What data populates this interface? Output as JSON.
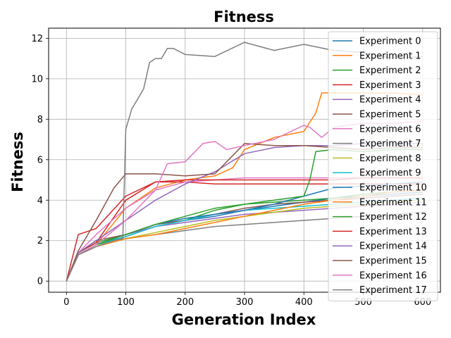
{
  "chart_data": {
    "type": "line",
    "title": "Fitness",
    "xlabel": "Generation Index",
    "ylabel": "Fitness",
    "xlim": [
      -30,
      630
    ],
    "ylim": [
      -0.55,
      12.5
    ],
    "xticks": [
      0,
      100,
      200,
      300,
      400,
      500,
      600
    ],
    "yticks": [
      0,
      2,
      4,
      6,
      8,
      10,
      12
    ],
    "grid": true,
    "legend_position": "top-right",
    "series": [
      {
        "name": "Experiment 0",
        "color": "#1f77b4",
        "x": [
          0,
          20,
          50,
          100,
          150,
          200,
          250,
          300,
          350,
          400,
          450,
          500,
          550,
          600
        ],
        "y": [
          0,
          1.3,
          1.8,
          2.2,
          2.7,
          3.0,
          3.2,
          3.5,
          3.7,
          3.9,
          4.1,
          4.2,
          4.3,
          4.4
        ]
      },
      {
        "name": "Experiment 1",
        "color": "#ff7f0e",
        "x": [
          0,
          20,
          50,
          100,
          150,
          200,
          250,
          280,
          300,
          350,
          400,
          420,
          430,
          450,
          500,
          550,
          600
        ],
        "y": [
          0,
          1.3,
          1.8,
          3.6,
          4.6,
          5.0,
          5.2,
          5.6,
          6.5,
          7.1,
          7.4,
          8.3,
          9.3,
          9.3,
          9.3,
          9.3,
          9.2
        ]
      },
      {
        "name": "Experiment 2",
        "color": "#2ca02c",
        "x": [
          0,
          20,
          50,
          100,
          150,
          200,
          250,
          300,
          350,
          400,
          450,
          500,
          550,
          600
        ],
        "y": [
          0,
          1.4,
          1.9,
          2.3,
          2.8,
          3.0,
          3.5,
          3.8,
          3.9,
          4.0,
          4.1,
          4.3,
          4.4,
          4.5
        ]
      },
      {
        "name": "Experiment 3",
        "color": "#d62728",
        "x": [
          0,
          20,
          50,
          100,
          150,
          200,
          250,
          300,
          350,
          400,
          450,
          500,
          550,
          600
        ],
        "y": [
          0,
          1.4,
          1.9,
          4.0,
          4.9,
          4.9,
          4.8,
          4.8,
          4.8,
          4.8,
          4.8,
          4.8,
          4.8,
          4.8
        ]
      },
      {
        "name": "Experiment 4",
        "color": "#9467bd",
        "x": [
          0,
          20,
          50,
          100,
          150,
          200,
          250,
          300,
          350,
          400,
          450,
          500,
          550,
          600
        ],
        "y": [
          0,
          1.3,
          1.8,
          2.3,
          2.7,
          2.9,
          3.1,
          3.3,
          3.4,
          3.5,
          3.6,
          3.7,
          3.8,
          3.9
        ]
      },
      {
        "name": "Experiment 5",
        "color": "#8c564b",
        "x": [
          0,
          20,
          50,
          100,
          150,
          200,
          250,
          300,
          350,
          400,
          450,
          500,
          550,
          600
        ],
        "y": [
          0,
          1.4,
          2.0,
          2.3,
          2.8,
          3.0,
          3.3,
          3.6,
          3.8,
          3.9,
          4.0,
          4.1,
          4.2,
          4.3
        ]
      },
      {
        "name": "Experiment 6",
        "color": "#e377c2",
        "x": [
          0,
          20,
          50,
          100,
          150,
          200,
          250,
          300,
          350,
          400,
          450,
          500,
          550,
          600
        ],
        "y": [
          0,
          1.4,
          2.3,
          3.6,
          4.5,
          4.9,
          5.0,
          5.1,
          5.1,
          5.1,
          5.1,
          5.1,
          5.1,
          5.1
        ]
      },
      {
        "name": "Experiment 7",
        "color": "#7f7f7f",
        "x": [
          0,
          20,
          50,
          100,
          150,
          200,
          250,
          300,
          350,
          400,
          450,
          500,
          550,
          600
        ],
        "y": [
          0,
          1.3,
          1.8,
          2.1,
          2.3,
          2.5,
          2.7,
          2.8,
          2.9,
          3.0,
          3.1,
          3.2,
          3.3,
          3.4
        ]
      },
      {
        "name": "Experiment 8",
        "color": "#bcbd22",
        "x": [
          0,
          20,
          50,
          100,
          150,
          200,
          250,
          300,
          350,
          400,
          450,
          500,
          550,
          600
        ],
        "y": [
          0,
          1.3,
          1.8,
          2.1,
          2.4,
          2.7,
          3.0,
          3.2,
          3.4,
          3.6,
          3.7,
          3.8,
          3.9,
          4.0
        ]
      },
      {
        "name": "Experiment 9",
        "color": "#17becf",
        "x": [
          0,
          20,
          50,
          100,
          150,
          200,
          250,
          300,
          350,
          400,
          450,
          500,
          550,
          600
        ],
        "y": [
          0,
          1.3,
          1.8,
          2.2,
          2.7,
          3.0,
          3.3,
          3.5,
          3.6,
          3.7,
          3.8,
          3.9,
          4.0,
          4.1
        ]
      },
      {
        "name": "Experiment 10",
        "color": "#1f77b4",
        "x": [
          0,
          20,
          50,
          100,
          150,
          200,
          250,
          300,
          350,
          400,
          450,
          500,
          550,
          600
        ],
        "y": [
          0,
          1.3,
          1.8,
          2.3,
          2.8,
          3.1,
          3.3,
          3.5,
          3.8,
          4.2,
          4.6,
          4.7,
          4.8,
          4.9
        ]
      },
      {
        "name": "Experiment 11",
        "color": "#ff7f0e",
        "x": [
          0,
          20,
          50,
          100,
          150,
          200,
          250,
          300,
          350,
          400,
          450,
          500,
          550,
          600
        ],
        "y": [
          0,
          1.3,
          1.7,
          2.1,
          2.3,
          2.6,
          2.9,
          3.2,
          3.5,
          3.8,
          4.0,
          4.2,
          4.4,
          4.5
        ]
      },
      {
        "name": "Experiment 12",
        "color": "#2ca02c",
        "x": [
          0,
          20,
          50,
          100,
          150,
          200,
          250,
          300,
          350,
          400,
          410,
          420,
          450,
          500,
          550,
          600
        ],
        "y": [
          0,
          1.3,
          1.8,
          2.3,
          2.8,
          3.2,
          3.6,
          3.8,
          4.0,
          4.2,
          5.0,
          6.4,
          6.5,
          6.4,
          6.5,
          6.5
        ]
      },
      {
        "name": "Experiment 13",
        "color": "#d62728",
        "x": [
          0,
          20,
          50,
          100,
          150,
          200,
          250,
          300,
          350,
          400,
          450,
          500,
          550,
          600
        ],
        "y": [
          0,
          2.3,
          2.6,
          4.2,
          4.9,
          5.0,
          5.0,
          5.0,
          5.0,
          5.0,
          5.0,
          5.1,
          5.1,
          5.1
        ]
      },
      {
        "name": "Experiment 14",
        "color": "#9467bd",
        "x": [
          0,
          20,
          50,
          100,
          150,
          200,
          250,
          300,
          350,
          400,
          450,
          500,
          550,
          600
        ],
        "y": [
          0,
          1.4,
          2.0,
          3.0,
          4.0,
          4.8,
          5.4,
          6.3,
          6.6,
          6.7,
          6.7,
          6.8,
          6.8,
          6.8
        ]
      },
      {
        "name": "Experiment 15",
        "color": "#8c564b",
        "x": [
          0,
          20,
          50,
          80,
          100,
          150,
          200,
          250,
          300,
          350,
          400,
          450,
          500,
          550,
          600
        ],
        "y": [
          0,
          1.5,
          3.0,
          4.6,
          5.3,
          5.3,
          5.2,
          5.3,
          6.8,
          6.7,
          6.7,
          6.6,
          6.5,
          6.6,
          6.6
        ]
      },
      {
        "name": "Experiment 16",
        "color": "#e377c2",
        "x": [
          0,
          20,
          50,
          100,
          150,
          170,
          200,
          230,
          250,
          270,
          300,
          350,
          400,
          410,
          430,
          450,
          500,
          550,
          600
        ],
        "y": [
          0,
          1.3,
          1.8,
          3.0,
          4.5,
          5.8,
          5.9,
          6.8,
          6.9,
          6.5,
          6.7,
          7.0,
          7.7,
          7.6,
          7.1,
          7.6,
          7.8,
          7.8,
          7.9
        ]
      },
      {
        "name": "Experiment 17",
        "color": "#7f7f7f",
        "x": [
          0,
          20,
          50,
          80,
          95,
          100,
          110,
          120,
          130,
          140,
          150,
          160,
          170,
          180,
          200,
          250,
          300,
          350,
          400,
          450,
          500,
          550,
          600
        ],
        "y": [
          0,
          1.3,
          1.7,
          2.0,
          2.1,
          7.5,
          8.5,
          9.0,
          9.5,
          10.8,
          11.0,
          11.0,
          11.5,
          11.5,
          11.2,
          11.1,
          11.8,
          11.4,
          11.7,
          11.4,
          11.3,
          11.0,
          11.1
        ]
      }
    ]
  }
}
